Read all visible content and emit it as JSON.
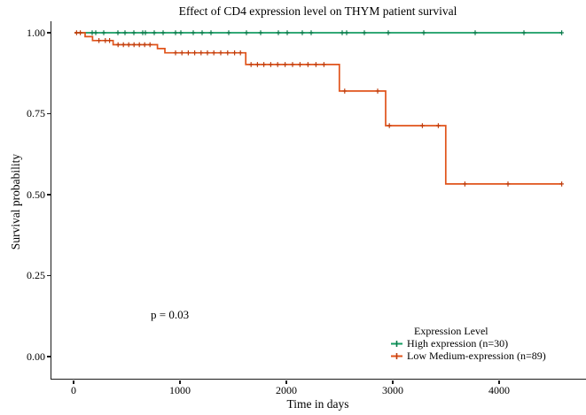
{
  "chart_data": {
    "type": "line",
    "subtype": "kaplan-meier-step-curves",
    "title": "Effect of CD4 expression level on THYM patient survival",
    "xlabel": "Time in days",
    "ylabel": "Survival probability",
    "xlim": [
      0,
      4800
    ],
    "ylim": [
      0,
      1
    ],
    "grid": false,
    "x_ticks": {
      "values": [
        0,
        1000,
        2000,
        3000,
        4000
      ],
      "labels": [
        "0",
        "1000",
        "2000",
        "3000",
        "4000"
      ]
    },
    "y_ticks": {
      "values": [
        0,
        0.25,
        0.5,
        0.75,
        1
      ],
      "labels": [
        "0.00",
        "0.25",
        "0.50",
        "0.75",
        "1.00"
      ]
    },
    "annotation": {
      "text": "p = 0.03"
    },
    "legend": {
      "title": "Expression Level",
      "position": "bottom-right-inside"
    },
    "series": [
      {
        "name": "High expression (n=30)",
        "color": "#149c62",
        "censor_color": "#0b7a4b",
        "steps": [
          [
            0,
            1.0
          ],
          [
            4580,
            1.0
          ]
        ],
        "censor_times": [
          167,
          200,
          275,
          408,
          475,
          558,
          642,
          667,
          750,
          833,
          950,
          1000,
          1117,
          1200,
          1283,
          1450,
          1617,
          1750,
          1917,
          2000,
          2142,
          2225,
          2517,
          2558,
          2725,
          2950,
          3283,
          3767,
          4225,
          4580
        ]
      },
      {
        "name": "Low Medium-expression (n=89)",
        "color": "#e0531a",
        "censor_color": "#bf3e0e",
        "steps": [
          [
            0,
            1.0
          ],
          [
            100,
            0.988
          ],
          [
            170,
            0.976
          ],
          [
            363,
            0.963
          ],
          [
            780,
            0.951
          ],
          [
            850,
            0.938
          ],
          [
            1610,
            0.902
          ],
          [
            2490,
            0.82
          ],
          [
            2925,
            0.713
          ],
          [
            3490,
            0.533
          ],
          [
            4580,
            0.533
          ]
        ],
        "censor_times": [
          20,
          55,
          230,
          290,
          330,
          410,
          460,
          510,
          560,
          610,
          660,
          710,
          950,
          1010,
          1070,
          1130,
          1190,
          1250,
          1310,
          1375,
          1440,
          1505,
          1560,
          1660,
          1720,
          1780,
          1845,
          1910,
          1980,
          2050,
          2120,
          2195,
          2270,
          2345,
          2540,
          2850,
          2960,
          3270,
          3420,
          3670,
          4075,
          4580
        ]
      }
    ]
  }
}
